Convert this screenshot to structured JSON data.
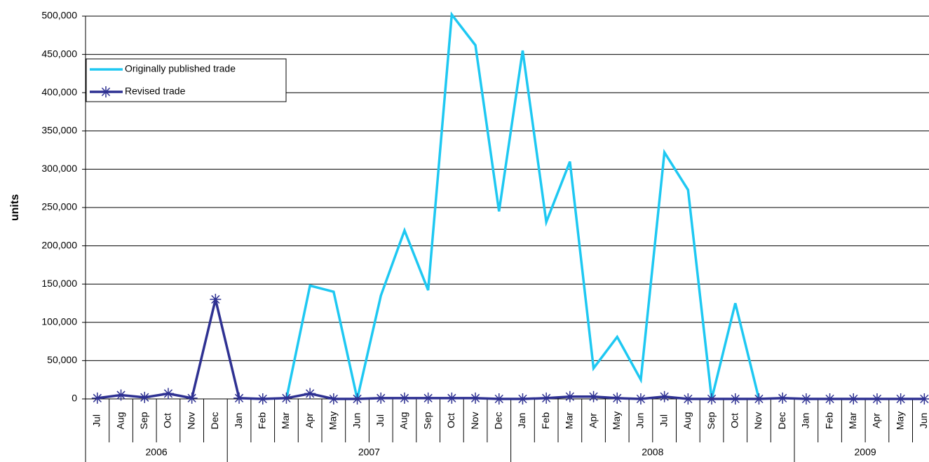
{
  "chart_data": {
    "type": "line",
    "y_label": "units",
    "categories": [
      "Jul",
      "Aug",
      "Sep",
      "Oct",
      "Nov",
      "Dec",
      "Jan",
      "Feb",
      "Mar",
      "Apr",
      "May",
      "Jun",
      "Jul",
      "Aug",
      "Sep",
      "Oct",
      "Nov",
      "Dec",
      "Jan",
      "Feb",
      "Mar",
      "Apr",
      "May",
      "Jun",
      "Jul",
      "Aug",
      "Sep",
      "Oct",
      "Nov",
      "Dec",
      "Jan",
      "Feb",
      "Mar",
      "Apr",
      "May",
      "Jun"
    ],
    "category_years": [
      "2006",
      "2006",
      "2006",
      "2006",
      "2006",
      "2006",
      "2007",
      "2007",
      "2007",
      "2007",
      "2007",
      "2007",
      "2007",
      "2007",
      "2007",
      "2007",
      "2007",
      "2007",
      "2008",
      "2008",
      "2008",
      "2008",
      "2008",
      "2008",
      "2008",
      "2008",
      "2008",
      "2008",
      "2008",
      "2008",
      "2009",
      "2009",
      "2009",
      "2009",
      "2009",
      "2009"
    ],
    "series": [
      {
        "name": "Originally published trade",
        "color": "#1ec8f2",
        "marker": "none",
        "values": [
          null,
          null,
          null,
          null,
          null,
          null,
          null,
          null,
          0,
          148000,
          140000,
          0,
          135000,
          220000,
          142000,
          502000,
          462000,
          245000,
          455000,
          231000,
          310000,
          40000,
          81000,
          25000,
          322000,
          273000,
          0,
          125000,
          0,
          null,
          null,
          null,
          null,
          null,
          null,
          null
        ]
      },
      {
        "name": "Revised trade",
        "color": "#2e3192",
        "marker": "asterisk",
        "values": [
          1000,
          5000,
          2000,
          7000,
          1000,
          130000,
          1000,
          0,
          1000,
          7000,
          0,
          0,
          1000,
          1000,
          1000,
          1000,
          1000,
          0,
          0,
          1000,
          3000,
          3000,
          1000,
          0,
          3000,
          0,
          0,
          0,
          0,
          1000,
          0,
          0,
          0,
          0,
          0,
          0
        ]
      }
    ],
    "ylim": [
      0,
      500000
    ],
    "yticks": [
      {
        "value": 0,
        "label": "0"
      },
      {
        "value": 50000,
        "label": "50,000"
      },
      {
        "value": 100000,
        "label": "100,000"
      },
      {
        "value": 150000,
        "label": "150,000"
      },
      {
        "value": 200000,
        "label": "200,000"
      },
      {
        "value": 250000,
        "label": "250,000"
      },
      {
        "value": 300000,
        "label": "300,000"
      },
      {
        "value": 350000,
        "label": "350,000"
      },
      {
        "value": 400000,
        "label": "400,000"
      },
      {
        "value": 450000,
        "label": "450,000"
      },
      {
        "value": 500000,
        "label": "500,000"
      }
    ],
    "grid": true,
    "legend": "top-left"
  }
}
